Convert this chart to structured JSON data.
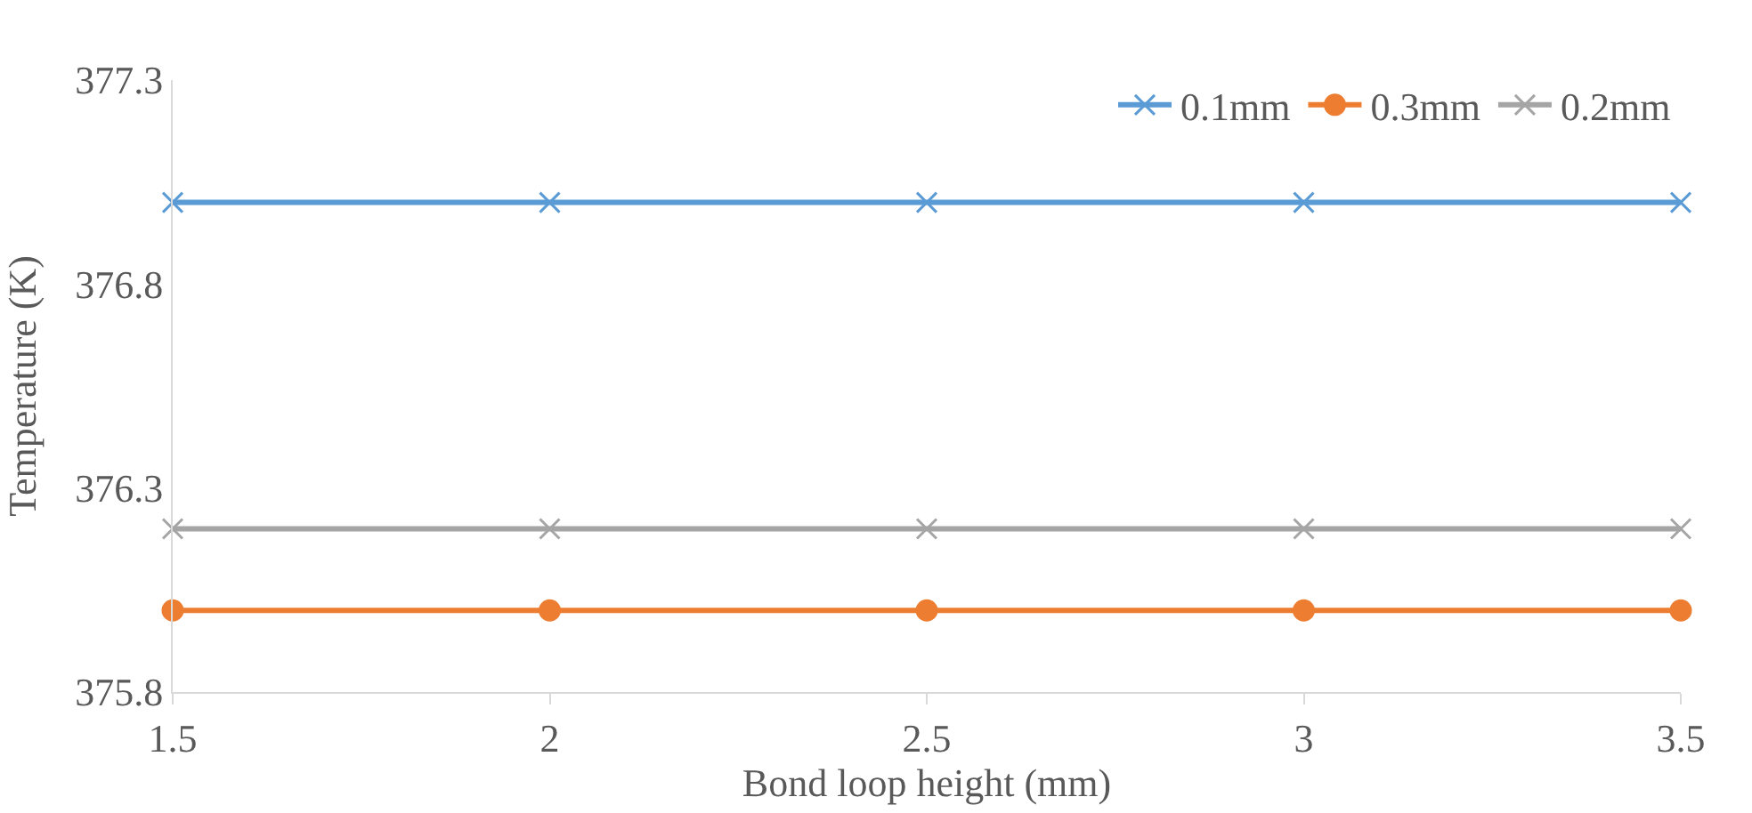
{
  "chart_data": {
    "type": "line",
    "xlabel": "Bond loop height (mm)",
    "ylabel": "Temperature (K)",
    "x": [
      1.5,
      2,
      2.5,
      3,
      3.5
    ],
    "series": [
      {
        "name": "0.1mm",
        "color": "#5b9bd5",
        "marker": "cross",
        "values": [
          377.0,
          377.0,
          377.0,
          377.0,
          377.0
        ]
      },
      {
        "name": "0.3mm",
        "color": "#ed7d31",
        "marker": "circle",
        "values": [
          376.0,
          376.0,
          376.0,
          376.0,
          376.0
        ]
      },
      {
        "name": "0.2mm",
        "color": "#a5a5a5",
        "marker": "cross",
        "values": [
          376.2,
          376.2,
          376.2,
          376.2,
          376.2
        ]
      }
    ],
    "xlim": [
      1.5,
      3.5
    ],
    "xticks": [
      1.5,
      2,
      2.5,
      3,
      3.5
    ],
    "ylim": [
      375.8,
      377.3
    ],
    "yticks": [
      375.8,
      376.3,
      376.8,
      377.3
    ],
    "legend": "top right",
    "line_style": "solid"
  }
}
